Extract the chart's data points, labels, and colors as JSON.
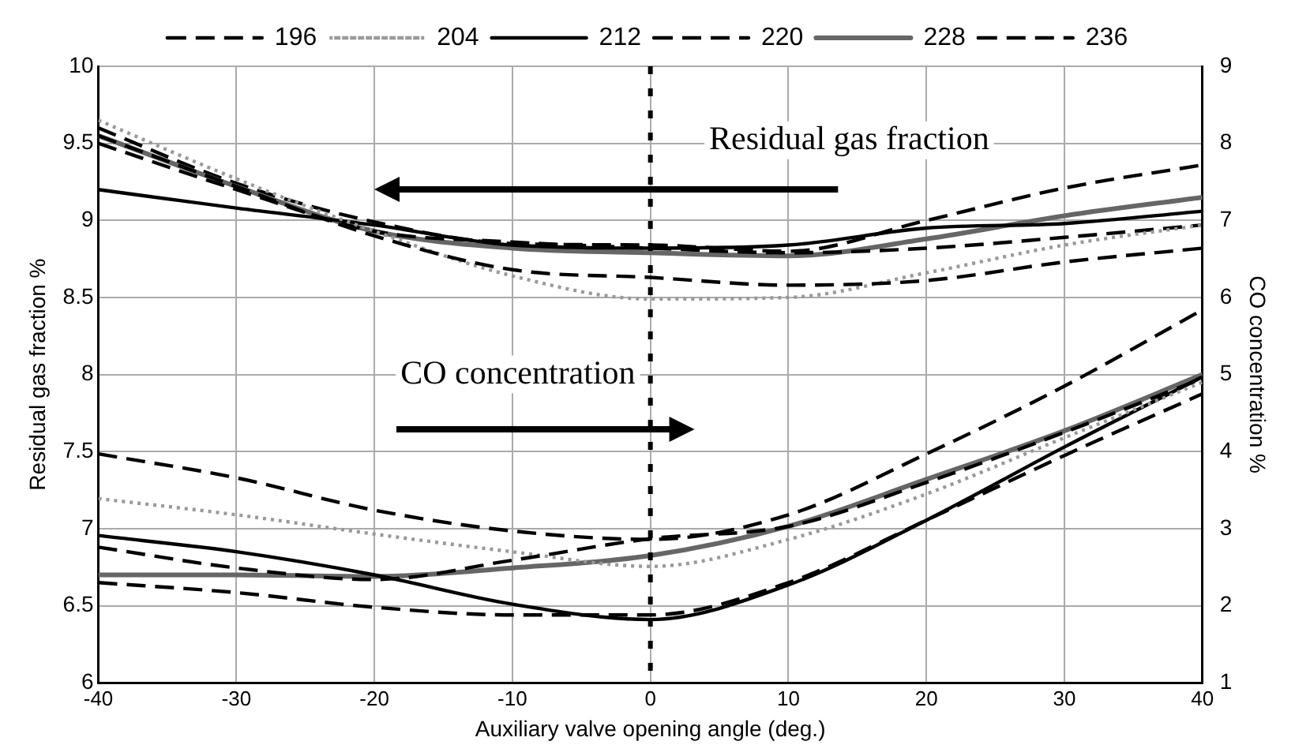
{
  "chart_data": {
    "type": "line",
    "xlabel": "Auxiliary valve opening angle (deg.)",
    "ylabel": "Residual gas fraction %",
    "y2label": "CO concentration %",
    "x": [
      -40,
      -30,
      -20,
      -10,
      0,
      10,
      20,
      30,
      40
    ],
    "xlim": [
      -40,
      40
    ],
    "xticks": [
      -40,
      -30,
      -20,
      -10,
      0,
      10,
      20,
      30,
      40
    ],
    "ylim": [
      6,
      10
    ],
    "yticks": [
      6,
      6.5,
      7,
      7.5,
      8,
      8.5,
      9,
      9.5,
      10
    ],
    "y2lim": [
      1,
      9
    ],
    "y2ticks": [
      1,
      2,
      3,
      4,
      5,
      6,
      7,
      8,
      9
    ],
    "grid": true,
    "legend": "top",
    "marker": "none",
    "annotations": [
      "Residual gas fraction",
      "CO concentration"
    ],
    "ref_lines": [
      {
        "axis": "x",
        "value": 0,
        "color": "#000000",
        "line_style": "dotted"
      }
    ],
    "series": [
      {
        "name": "196",
        "color": "#000000",
        "line_style": "dashed",
        "values": [
          9.55,
          9.22,
          8.9,
          8.68,
          8.63,
          8.58,
          8.61,
          8.73,
          8.82
        ]
      },
      {
        "name": "204",
        "color": "#999999",
        "line_style": "dotted",
        "values": [
          9.65,
          9.27,
          8.93,
          8.64,
          8.49,
          8.5,
          8.66,
          8.84,
          8.97
        ]
      },
      {
        "name": "212",
        "color": "#000000",
        "line_style": "solid",
        "values": [
          9.2,
          9.08,
          8.97,
          8.84,
          8.82,
          8.84,
          8.95,
          8.98,
          9.06
        ]
      },
      {
        "name": "220",
        "color": "#000000",
        "line_style": "dashed",
        "values": [
          9.5,
          9.2,
          8.93,
          8.86,
          8.82,
          8.79,
          8.82,
          8.89,
          8.97
        ]
      },
      {
        "name": "228",
        "color": "#666666",
        "line_style": "solid",
        "values": [
          9.55,
          9.22,
          8.93,
          8.82,
          8.79,
          8.77,
          8.88,
          9.03,
          9.15
        ]
      },
      {
        "name": "236",
        "color": "#000000",
        "line_style": "dashed",
        "values": [
          9.6,
          9.24,
          8.99,
          8.85,
          8.84,
          8.8,
          9.0,
          9.21,
          9.36
        ]
      },
      {
        "color": "#000000",
        "line_style": "dashed",
        "axis": "y2",
        "values": [
          2.76,
          2.49,
          2.34,
          2.59,
          2.87,
          3.03,
          3.6,
          4.25,
          4.95
        ]
      },
      {
        "color": "#999999",
        "line_style": "dotted",
        "axis": "y2",
        "values": [
          3.39,
          3.18,
          2.93,
          2.7,
          2.51,
          2.86,
          3.45,
          4.18,
          4.9
        ]
      },
      {
        "color": "#000000",
        "line_style": "solid",
        "axis": "y2",
        "values": [
          2.91,
          2.7,
          2.4,
          2.02,
          1.82,
          2.27,
          3.11,
          4.06,
          4.97
        ]
      },
      {
        "color": "#000000",
        "line_style": "dashed",
        "axis": "y2",
        "values": [
          2.3,
          2.17,
          1.98,
          1.88,
          1.88,
          2.3,
          3.11,
          3.95,
          4.75
        ]
      },
      {
        "color": "#666666",
        "line_style": "solid",
        "axis": "y2",
        "values": [
          2.4,
          2.4,
          2.38,
          2.49,
          2.65,
          3.03,
          3.64,
          4.27,
          5.0
        ]
      },
      {
        "color": "#000000",
        "line_style": "dashed",
        "axis": "y2",
        "values": [
          3.97,
          3.66,
          3.24,
          2.97,
          2.86,
          3.18,
          3.97,
          4.85,
          5.84
        ]
      }
    ]
  }
}
